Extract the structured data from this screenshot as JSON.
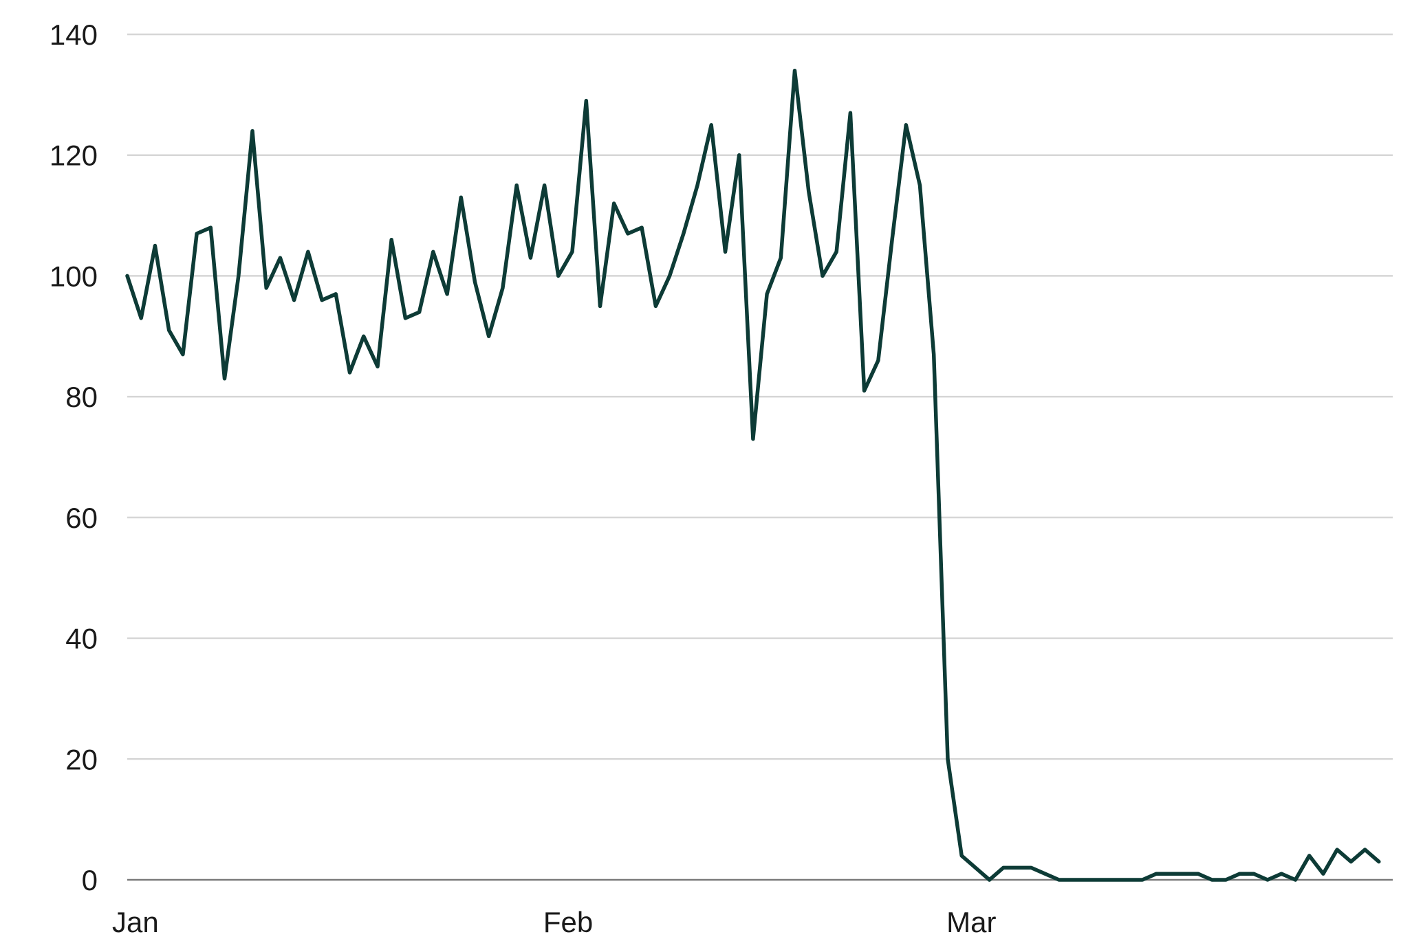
{
  "chart_data": {
    "type": "line",
    "title": "",
    "xlabel": "",
    "ylabel": "",
    "ylim": [
      0,
      140
    ],
    "yticks": [
      0,
      20,
      40,
      60,
      80,
      100,
      120,
      140
    ],
    "xtick_labels": [
      "Jan",
      "Feb",
      "Mar"
    ],
    "x_start": "2020-01-01",
    "x_end": "2020-04-01",
    "grid": true,
    "legend": "none",
    "colors": {
      "line": "#0d3b36",
      "grid": "#d6d6d6",
      "baseline": "#7a7a7a",
      "text": "#1a1a1a"
    },
    "series": [
      {
        "values": [
          100,
          93,
          105,
          91,
          87,
          107,
          108,
          83,
          100,
          124,
          98,
          103,
          96,
          104,
          96,
          97,
          84,
          90,
          85,
          106,
          93,
          94,
          104,
          97,
          113,
          99,
          90,
          98,
          115,
          103,
          115,
          100,
          104,
          129,
          95,
          112,
          107,
          108,
          95,
          100,
          107,
          115,
          125,
          104,
          120,
          73,
          97,
          103,
          134,
          114,
          100,
          104,
          127,
          81,
          86,
          106,
          125,
          115,
          87,
          20,
          4,
          2,
          0,
          2,
          2,
          2,
          1,
          0,
          0,
          0,
          0,
          0,
          0,
          0,
          1,
          1,
          1,
          1,
          0,
          0,
          1,
          1,
          0,
          1,
          0,
          4,
          1,
          5,
          3,
          5,
          3
        ]
      }
    ]
  }
}
